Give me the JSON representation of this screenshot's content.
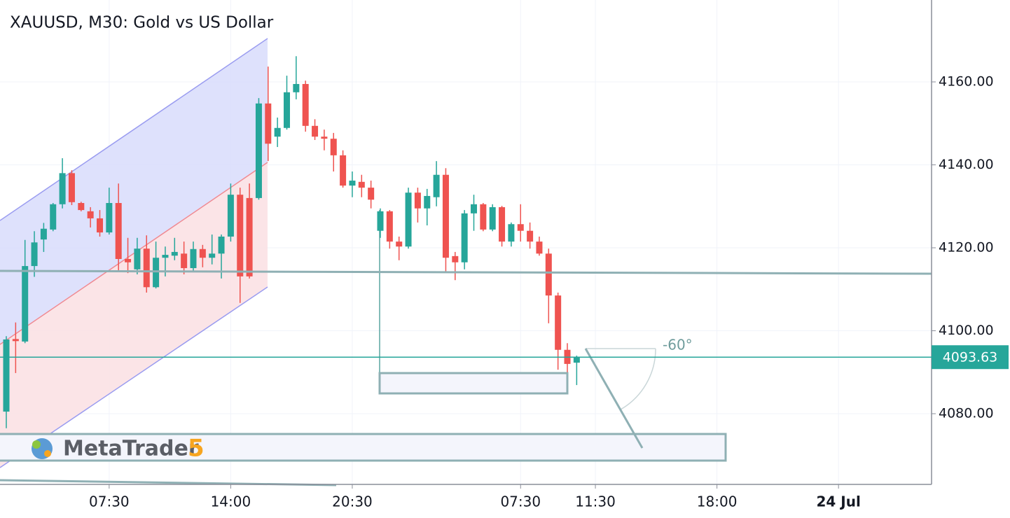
{
  "chart_data": {
    "type": "candlestick",
    "title": "XAUUSD, M30: Gold vs US Dollar",
    "x": [
      0,
      1,
      2,
      3,
      4,
      5,
      6,
      7,
      8,
      9,
      10,
      11,
      12,
      13,
      14,
      15,
      16,
      17,
      18,
      19,
      20,
      21,
      22,
      23,
      24,
      25,
      26,
      27,
      28,
      29,
      30,
      31,
      32,
      33,
      34,
      35,
      36,
      37,
      38,
      39,
      40,
      41,
      42,
      43,
      44,
      45,
      46,
      47,
      48,
      49,
      50,
      51,
      52,
      53,
      54,
      55,
      56,
      57,
      58,
      59,
      60,
      61
    ],
    "open": [
      4080.5,
      4098,
      4097.4,
      4115.6,
      4122,
      4124.4,
      4130.5,
      4138,
      4130.8,
      4128.8,
      4127.1,
      4123.7,
      4130.8,
      4117.3,
      4114.8,
      4119.8,
      4110.5,
      4117.6,
      4118.1,
      4118.6,
      4115.1,
      4119.7,
      4117.6,
      4118.6,
      4122.7,
      4132.8,
      4132,
      4132,
      4154.8,
      4146.8,
      4148.9,
      4157.5,
      4159.5,
      4149.4,
      4146.8,
      4146.3,
      4142.3,
      4135,
      4135.9,
      4134.5,
      4124.1,
      4128.8,
      4121.5,
      4120.3,
      4133.3,
      4129.5,
      4132.2,
      4137.6,
      4118,
      4116.5,
      4128.3,
      4130.5,
      4124.4,
      4129.8,
      4121.5,
      4125.7,
      4124.1,
      4121.5,
      4118.6,
      4108.5,
      4095.4,
      4092.3
    ],
    "high": [
      4098.7,
      4102,
      4121.9,
      4124,
      4126,
      4130.8,
      4141.6,
      4138.7,
      4131.1,
      4129.8,
      4129.1,
      4134.5,
      4135.5,
      4122.4,
      4122.4,
      4123,
      4121.5,
      4120.3,
      4122.4,
      4121.5,
      4121.5,
      4120.7,
      4123.2,
      4123.2,
      4135.5,
      4134.5,
      4135.5,
      4156.1,
      4163.7,
      4151.4,
      4161.5,
      4166.2,
      4160.3,
      4151,
      4148.5,
      4147.7,
      4143.5,
      4138.4,
      4137.6,
      4136.2,
      4129.5,
      4129.1,
      4122.7,
      4134.5,
      4134.5,
      4134.2,
      4140.9,
      4139.2,
      4119,
      4129.1,
      4132.8,
      4130.8,
      4130.5,
      4130.1,
      4126.1,
      4130.5,
      4126.1,
      4122.7,
      4119.8,
      4109.2,
      4097,
      4094
    ],
    "low": [
      4076.5,
      4089.8,
      4097,
      4113,
      4119,
      4124,
      4129.5,
      4130.3,
      4128.8,
      4124.9,
      4122.7,
      4123.2,
      4114.3,
      4113.9,
      4113.6,
      4109.2,
      4110.2,
      4113.1,
      4117,
      4113.6,
      4114.3,
      4115.3,
      4116,
      4112.6,
      4121.5,
      4106.7,
      4112.6,
      4131.6,
      4140.9,
      4144.3,
      4148.5,
      4155.8,
      4148,
      4146,
      4143.5,
      4138.4,
      4134.5,
      4132.2,
      4132.2,
      4129.5,
      4122.4,
      4119.8,
      4117,
      4119.8,
      4126.1,
      4125.4,
      4130,
      4114.3,
      4112.2,
      4114.8,
      4124.1,
      4124,
      4124,
      4120.3,
      4120.3,
      4121.5,
      4119.8,
      4118.1,
      4101.8,
      4090.6,
      4090,
      4086.9
    ],
    "close": [
      4097.9,
      4097.5,
      4115.6,
      4121.3,
      4124.6,
      4130.5,
      4138,
      4131,
      4129.1,
      4127.1,
      4123.7,
      4130.8,
      4117.3,
      4116.5,
      4119.8,
      4110.5,
      4117.6,
      4118.3,
      4119,
      4115.1,
      4119.7,
      4117.6,
      4118.6,
      4122.7,
      4132.8,
      4113.1,
      4113.1,
      4154.8,
      4145.1,
      4148.9,
      4157.5,
      4159.5,
      4149.4,
      4146.8,
      4146.3,
      4142.3,
      4135,
      4136.2,
      4134.5,
      4131.6,
      4128.8,
      4121.5,
      4120.3,
      4133.3,
      4129.5,
      4132.5,
      4137.6,
      4117.6,
      4116.5,
      4128.3,
      4130.5,
      4124.4,
      4129.8,
      4121.5,
      4125.7,
      4124.1,
      4121.5,
      4118.6,
      4108.5,
      4095.4,
      4092,
      4093.63
    ],
    "up_color": "#26a69a",
    "down_color": "#ef5350",
    "xlim": [
      -0.674,
      98.95
    ],
    "xticks": [
      {
        "value": 11,
        "label": "07:30"
      },
      {
        "value": 24,
        "label": "14:00"
      },
      {
        "value": 37,
        "label": "20:30"
      },
      {
        "value": 55,
        "label": "07:30"
      },
      {
        "value": 63,
        "label": "11:30"
      },
      {
        "value": 76,
        "label": "18:00"
      },
      {
        "value": 89,
        "label": "24 Jul"
      }
    ],
    "ylim": [
      4062.95,
      4179.75
    ],
    "yticks": [
      {
        "value": 4080,
        "label": "4080.00"
      },
      {
        "value": 4100,
        "label": "4100.00"
      },
      {
        "value": 4120,
        "label": "4120.00"
      },
      {
        "value": 4140,
        "label": "4140.00"
      },
      {
        "value": 4160,
        "label": "4160.00"
      }
    ],
    "grid": true,
    "current_price": 4093.63,
    "current_price_color": "#26a69a",
    "annotations": [
      "-60°"
    ],
    "logo_text": "MetaTrader",
    "logo_version": "5"
  }
}
